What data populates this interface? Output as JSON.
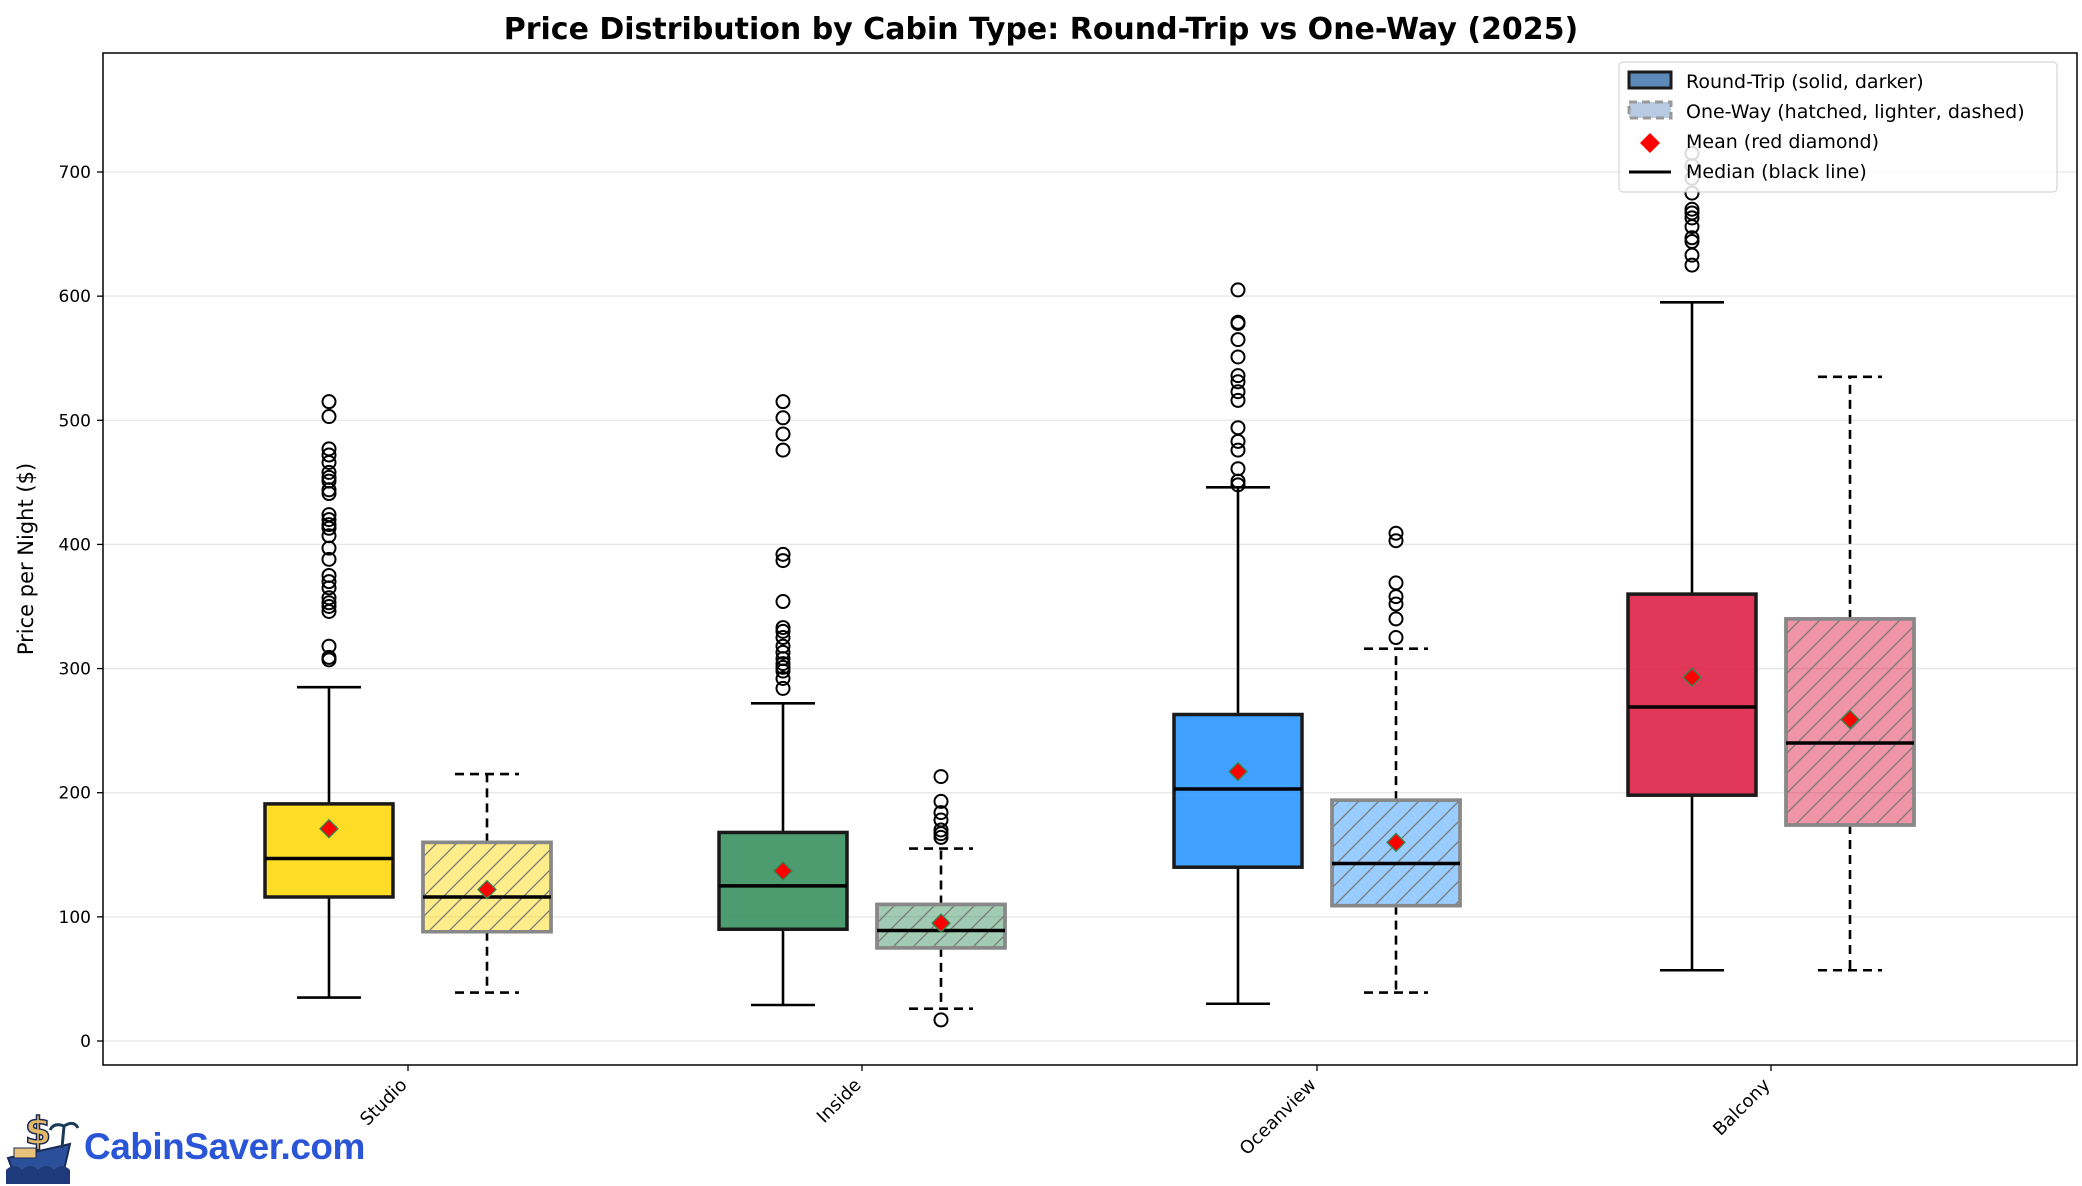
{
  "chart_data": {
    "type": "boxplot",
    "title": "Price Distribution by Cabin Type: Round-Trip vs One-Way (2025)",
    "xlabel": "",
    "ylabel": "Price per Night ($)",
    "ylim": [
      -20,
      810
    ],
    "yticks": [
      0,
      100,
      200,
      300,
      400,
      500,
      600,
      700
    ],
    "grid": "horizontal",
    "legend_position": "top-right",
    "categories": [
      "Studio",
      "Inside",
      "Oceanview",
      "Balcony"
    ],
    "colors": {
      "Studio": "#FFD700",
      "Inside": "#2E8B57",
      "Oceanview": "#1E90FF",
      "Balcony": "#DC143C"
    },
    "legend": [
      {
        "label": "Round-Trip (solid, darker)",
        "kind": "solid-box"
      },
      {
        "label": "One-Way (hatched, lighter, dashed)",
        "kind": "hatched-box"
      },
      {
        "label": "Mean (red diamond)",
        "kind": "diamond"
      },
      {
        "label": "Median (black line)",
        "kind": "line"
      }
    ],
    "series": [
      {
        "name": "Round-Trip",
        "boxes": [
          {
            "category": "Studio",
            "whisker_low": 35,
            "q1": 116,
            "median": 147,
            "q3": 191,
            "whisker_high": 285,
            "mean": 171,
            "outliers": [
              307,
              309,
              318,
              346,
              350,
              353,
              357,
              365,
              370,
              375,
              388,
              397,
              407,
              413,
              416,
              420,
              424,
              441,
              444,
              451,
              454,
              458,
              466,
              472,
              477,
              503,
              515
            ]
          },
          {
            "category": "Inside",
            "whisker_low": 29,
            "q1": 90,
            "median": 125,
            "q3": 168,
            "whisker_high": 272,
            "mean": 137,
            "outliers": [
              284,
              292,
              298,
              301,
              304,
              308,
              313,
              318,
              325,
              330,
              333,
              354,
              387,
              392,
              476,
              489,
              502,
              515
            ]
          },
          {
            "category": "Oceanview",
            "whisker_low": 30,
            "q1": 140,
            "median": 203,
            "q3": 263,
            "whisker_high": 446,
            "mean": 217,
            "outliers": [
              448,
              451,
              461,
              476,
              483,
              494,
              516,
              523,
              531,
              536,
              551,
              565,
              578,
              579,
              605
            ]
          },
          {
            "category": "Balcony",
            "whisker_low": 57,
            "q1": 198,
            "median": 269,
            "q3": 360,
            "whisker_high": 595,
            "mean": 293,
            "outliers": [
              625,
              633,
              644,
              647,
              656,
              663,
              667,
              670,
              683,
              695,
              705,
              715
            ]
          }
        ]
      },
      {
        "name": "One-Way",
        "boxes": [
          {
            "category": "Studio",
            "whisker_low": 39,
            "q1": 88,
            "median": 116,
            "q3": 160,
            "whisker_high": 215,
            "mean": 122,
            "outliers": []
          },
          {
            "category": "Inside",
            "whisker_low": 26,
            "q1": 75,
            "median": 89,
            "q3": 110,
            "whisker_high": 155,
            "mean": 95,
            "outliers": [
              17,
              164,
              167,
              170,
              178,
              184,
              193,
              213
            ]
          },
          {
            "category": "Oceanview",
            "whisker_low": 39,
            "q1": 109,
            "median": 143,
            "q3": 194,
            "whisker_high": 316,
            "mean": 160,
            "outliers": [
              325,
              340,
              352,
              358,
              369,
              403,
              409
            ]
          },
          {
            "category": "Balcony",
            "whisker_low": 57,
            "q1": 174,
            "median": 240,
            "q3": 340,
            "whisker_high": 535,
            "mean": 259,
            "outliers": []
          }
        ]
      }
    ]
  },
  "logo": {
    "text": "CabinSaver.com"
  }
}
